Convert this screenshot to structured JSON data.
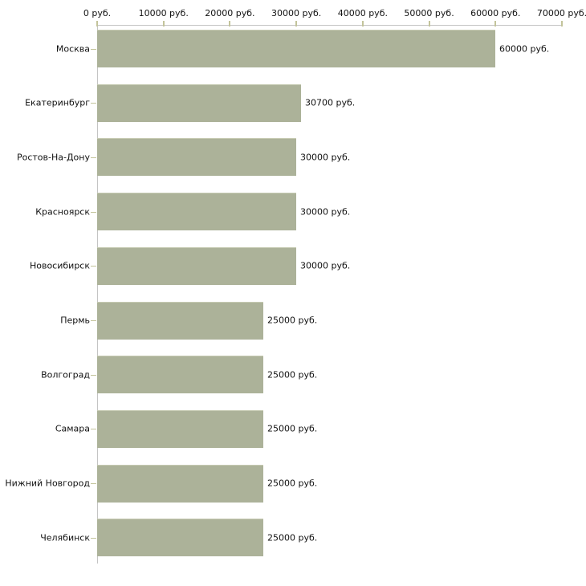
{
  "chart_data": {
    "type": "bar",
    "orientation": "horizontal",
    "title": "",
    "categories": [
      "Москва",
      "Екатеринбург",
      "Ростов-На-Дону",
      "Красноярск",
      "Новосибирск",
      "Пермь",
      "Волгоград",
      "Самара",
      "Нижний Новгород",
      "Челябинск"
    ],
    "values": [
      60000,
      30700,
      30000,
      30000,
      30000,
      25000,
      25000,
      25000,
      25000,
      25000
    ],
    "value_labels": [
      "60000 руб.",
      "30700 руб.",
      "30000 руб.",
      "30000 руб.",
      "30000 руб.",
      "25000 руб.",
      "25000 руб.",
      "25000 руб.",
      "25000 руб.",
      "25000 руб."
    ],
    "unit": "руб.",
    "x_axis": {
      "position": "top",
      "min": 0,
      "max": 70000,
      "tick_values": [
        0,
        10000,
        20000,
        30000,
        40000,
        50000,
        60000,
        70000
      ],
      "tick_labels": [
        "0 руб.",
        "10000 руб.",
        "20000 руб.",
        "30000 руб.",
        "40000 руб.",
        "50000 руб.",
        "60000 руб.",
        "70000 руб."
      ]
    },
    "legend": null,
    "grid": false,
    "colors": {
      "bar_fill": "#acb299",
      "bar_edge": "#c6cab2",
      "axis_line": "#c4c4c4",
      "tick_mark": "#c3c49b",
      "text": "#111111",
      "background": "#ffffff"
    }
  }
}
